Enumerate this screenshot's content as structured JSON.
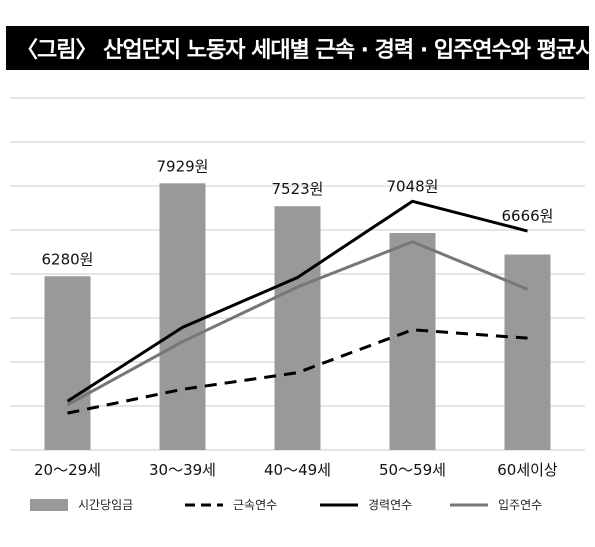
{
  "title": "〈그림〉 산업단지 노동자 세대별 근속 · 경력 · 입주연수와 평균시급",
  "chart_data": {
    "type": "bar",
    "categories": [
      "20～29세",
      "30～39세",
      "40～49세",
      "50～59세",
      "60세이상"
    ],
    "series": [
      {
        "name": "시간당임금",
        "type": "bar",
        "values": [
          6280,
          7929,
          7523,
          7048,
          6666
        ],
        "color": "#999999"
      },
      {
        "name": "근속연수",
        "type": "line",
        "style": "dashed",
        "values": [
          1.0,
          3.0,
          4.4,
          8.0,
          7.3
        ],
        "color": "#000000"
      },
      {
        "name": "경력연수",
        "type": "line",
        "style": "solid",
        "values": [
          2.0,
          8.2,
          12.4,
          18.8,
          16.3
        ],
        "color": "#000000"
      },
      {
        "name": "입주연수",
        "type": "line",
        "style": "solid",
        "values": [
          1.7,
          7.0,
          11.6,
          15.4,
          11.4
        ],
        "color": "#777777"
      }
    ],
    "data_labels": [
      "6280원",
      "7929원",
      "7523원",
      "7048원",
      "6666원"
    ],
    "legend_position": "bottom",
    "grid": true
  }
}
